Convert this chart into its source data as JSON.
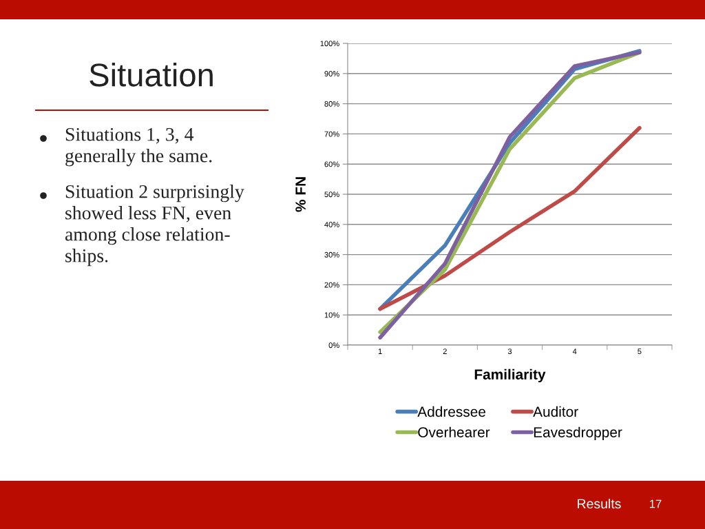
{
  "chart_data": {
    "type": "line",
    "title": "Situation",
    "xlabel": "Familiarity",
    "ylabel": "% FN",
    "categories": [
      "1",
      "2",
      "3",
      "4",
      "5"
    ],
    "series": [
      {
        "name": "Addressee",
        "color": "#4a7ebb",
        "values": [
          12,
          33,
          67,
          91.5,
          97.5
        ]
      },
      {
        "name": "Auditor",
        "color": "#be4b48",
        "values": [
          12,
          23,
          37.5,
          51,
          72
        ]
      },
      {
        "name": "Overhearer",
        "color": "#98b954",
        "values": [
          4.3,
          25,
          65,
          88.5,
          97
        ]
      },
      {
        "name": "Eavesdropper",
        "color": "#7d60a0",
        "values": [
          2.5,
          27,
          69,
          92.5,
          97
        ]
      }
    ],
    "ylim": [
      0,
      100
    ],
    "yticks": [
      {
        "value": 0,
        "label": "0%"
      },
      {
        "value": 10,
        "label": "10%"
      },
      {
        "value": 20,
        "label": "20%"
      },
      {
        "value": 30,
        "label": "30%"
      },
      {
        "value": 40,
        "label": "40%"
      },
      {
        "value": 50,
        "label": "50%"
      },
      {
        "value": 60,
        "label": "60%"
      },
      {
        "value": 70,
        "label": "70%"
      },
      {
        "value": 80,
        "label": "80%"
      },
      {
        "value": 90,
        "label": "90%"
      },
      {
        "value": 100,
        "label": "100%"
      }
    ],
    "grid": "y",
    "legend": "bottom",
    "marker": "none",
    "line_style": "solid",
    "annotations": [
      "Situations 1, 3, 4\ngenerally the same.",
      "Situation 2 surprisingly\nshowed less FN, even\namong close relation-\nships.",
      "Results",
      "17"
    ]
  }
}
